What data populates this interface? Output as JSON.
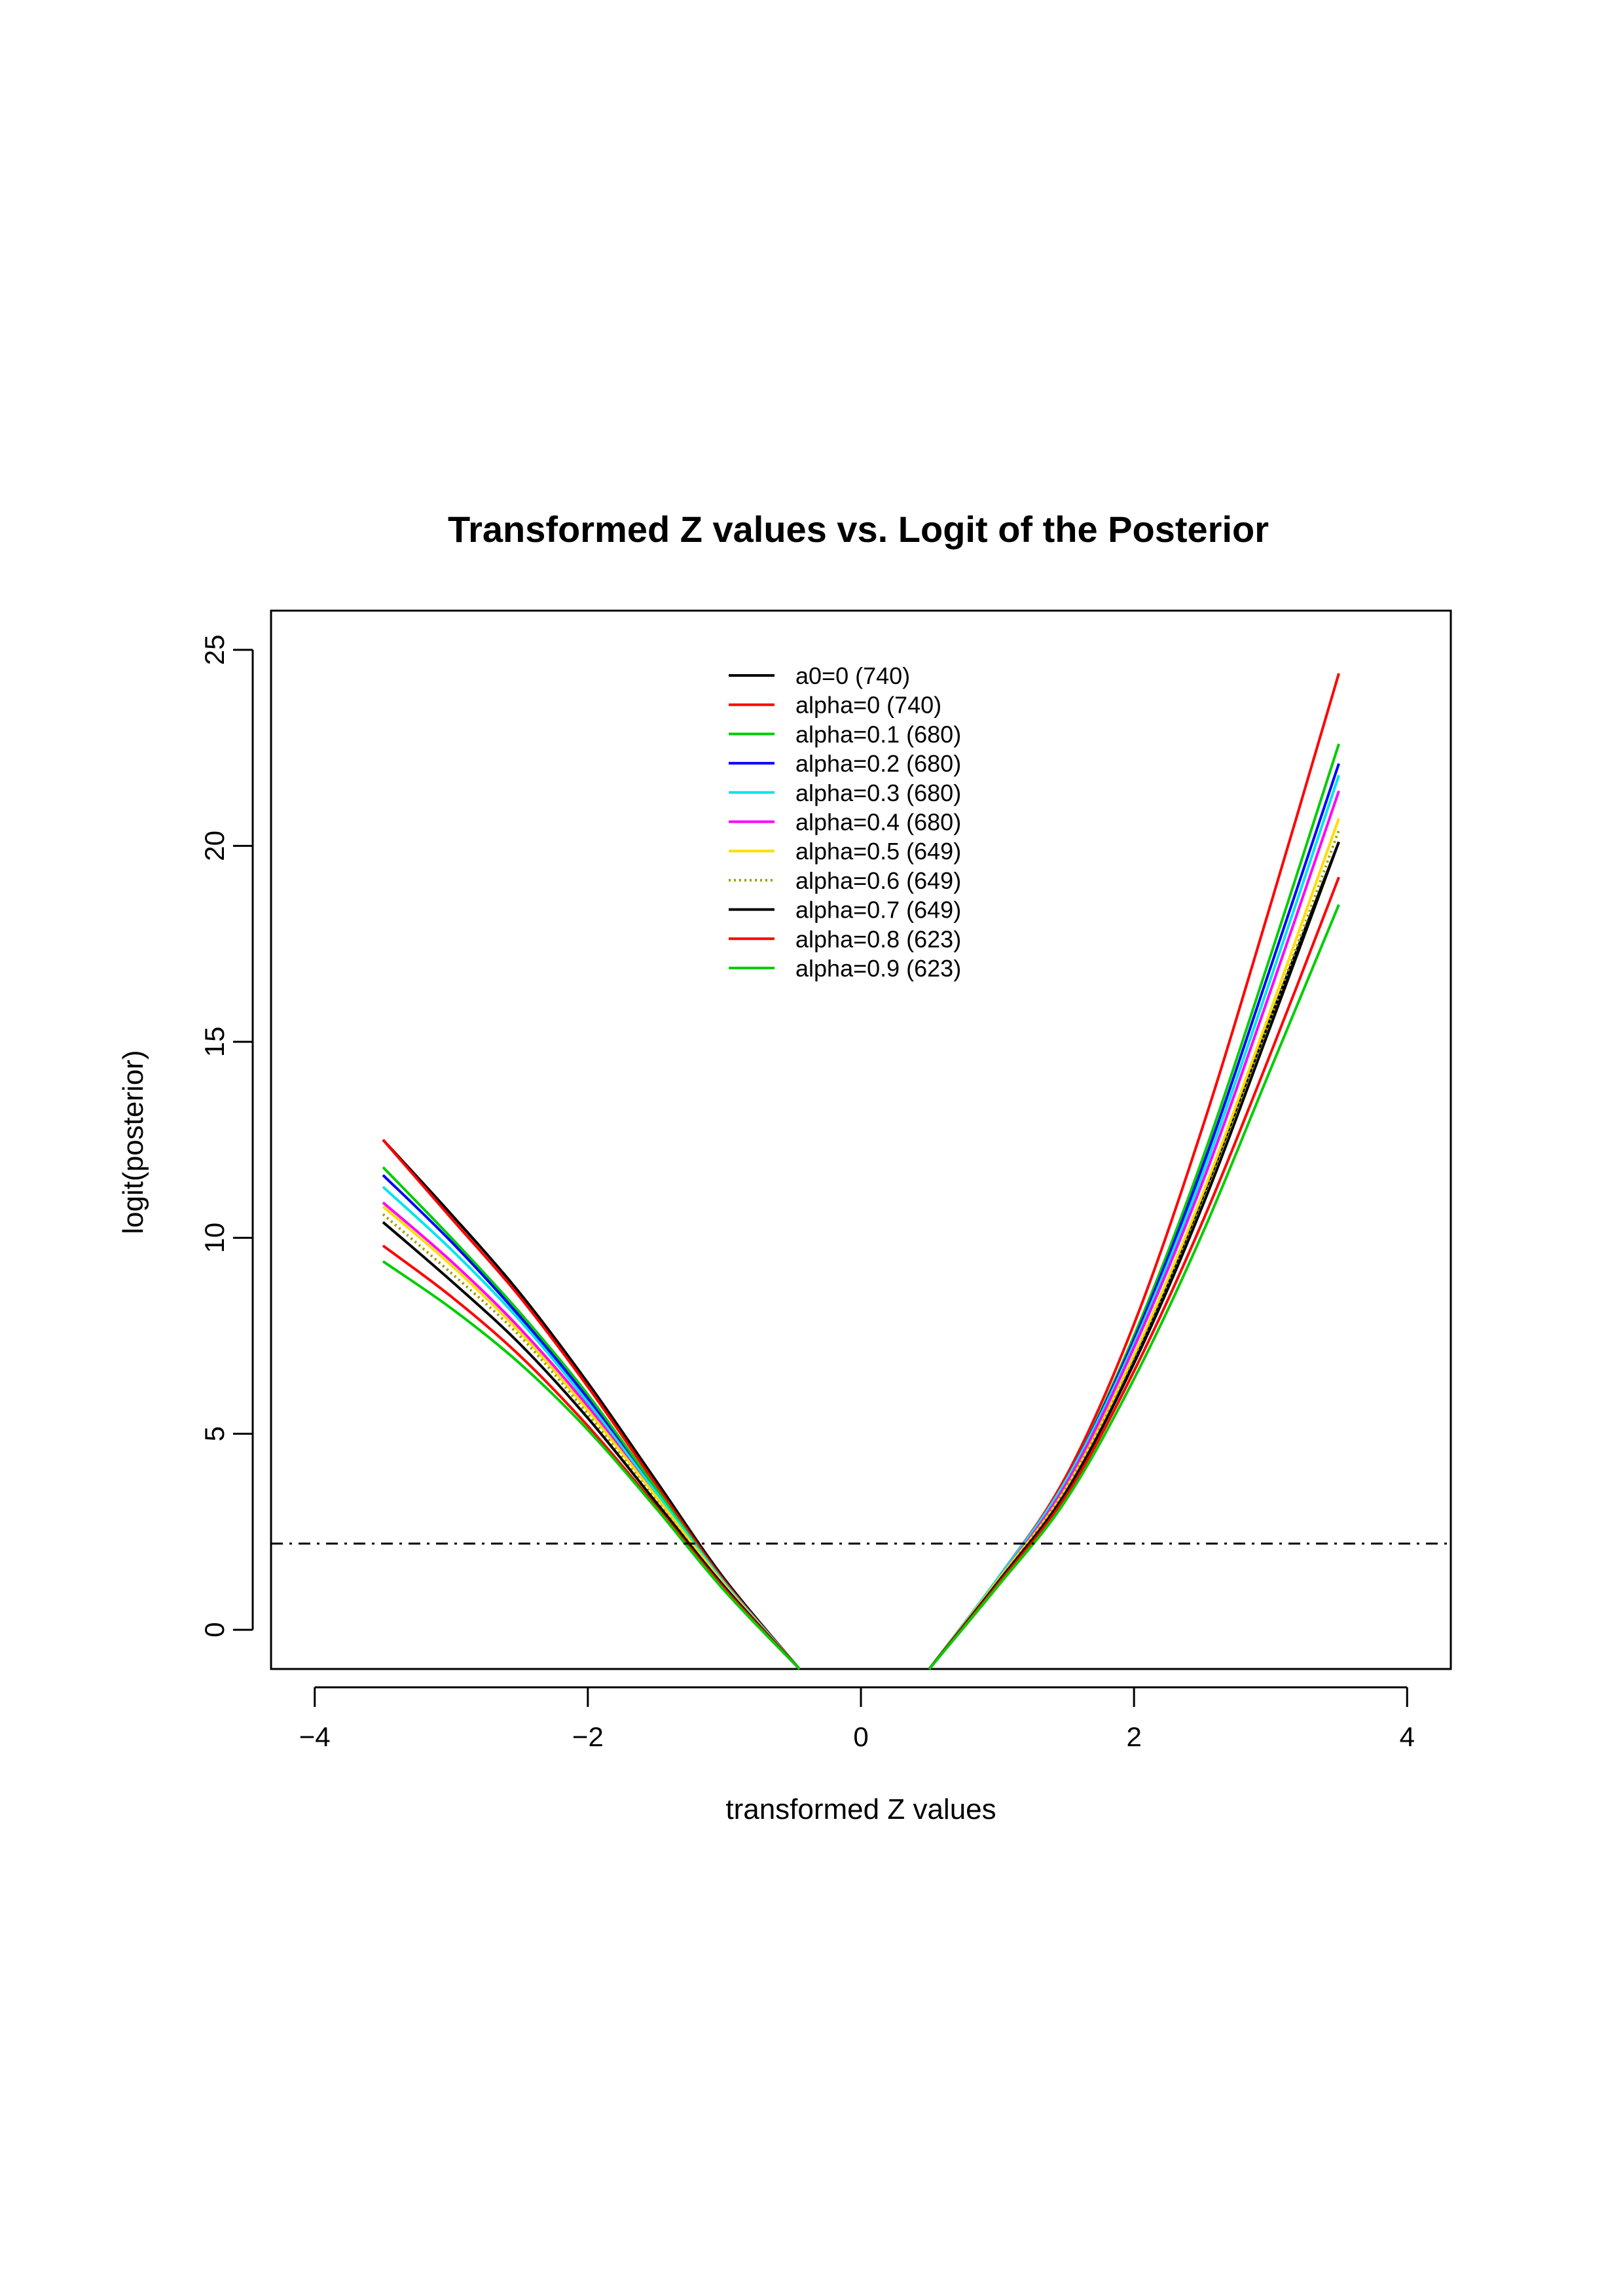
{
  "chart_data": {
    "type": "line",
    "title": "Transformed Z values vs. Logit of the Posterior",
    "xlabel": "transformed Z values",
    "ylabel": "logit(posterior)",
    "xlim": [
      -4.32,
      4.32
    ],
    "ylim": [
      -1,
      26
    ],
    "xticks": [
      -4,
      -2,
      0,
      2,
      4
    ],
    "xtick_labels": [
      "−4",
      "−2",
      "0",
      "2",
      "4"
    ],
    "yticks": [
      0,
      5,
      10,
      15,
      20,
      25
    ],
    "ytick_labels": [
      "0",
      "5",
      "10",
      "15",
      "20",
      "25"
    ],
    "legend_position": "top-center",
    "grid": false,
    "threshold_line": {
      "y": 2.2,
      "style": "dash-dot",
      "color": "#000000"
    },
    "series": [
      {
        "name": "a0=0 (740)",
        "color": "#000000",
        "dotted": false,
        "left_x": [
          -3.5,
          -3.0,
          -2.5,
          -2.0,
          -1.5,
          -1.0,
          -0.45
        ],
        "left_y": [
          12.5,
          10.6,
          8.6,
          6.3,
          3.8,
          1.3,
          -1
        ],
        "right_x": [
          0.5,
          1.0,
          1.5,
          2.0,
          2.5,
          3.0,
          3.5
        ],
        "right_y": [
          -1,
          1.2,
          3.5,
          6.9,
          11.0,
          15.6,
          20.1
        ]
      },
      {
        "name": "alpha=0 (740)",
        "color": "#ff0000",
        "dotted": false,
        "left_x": [
          -3.5,
          -3.0,
          -2.5,
          -2.0,
          -1.5,
          -1.0,
          -0.45
        ],
        "left_y": [
          12.5,
          10.5,
          8.5,
          6.2,
          3.7,
          1.25,
          -1
        ],
        "right_x": [
          0.5,
          1.0,
          1.5,
          2.0,
          2.5,
          3.0,
          3.5
        ],
        "right_y": [
          -1,
          1.3,
          3.9,
          7.8,
          12.8,
          18.5,
          24.4
        ]
      },
      {
        "name": "alpha=0.1 (680)",
        "color": "#00cd00",
        "dotted": false,
        "left_x": [
          -3.5,
          -3.0,
          -2.5,
          -2.0,
          -1.5,
          -1.0,
          -0.45
        ],
        "left_y": [
          11.8,
          10.0,
          8.1,
          6.0,
          3.6,
          1.2,
          -1
        ],
        "right_x": [
          0.5,
          1.0,
          1.5,
          2.0,
          2.5,
          3.0,
          3.5
        ],
        "right_y": [
          -1,
          1.3,
          3.8,
          7.5,
          12.0,
          17.2,
          22.6
        ]
      },
      {
        "name": "alpha=0.2 (680)",
        "color": "#0000ff",
        "dotted": false,
        "left_x": [
          -3.5,
          -3.0,
          -2.5,
          -2.0,
          -1.5,
          -1.0,
          -0.45
        ],
        "left_y": [
          11.6,
          9.9,
          8.0,
          5.9,
          3.5,
          1.2,
          -1
        ],
        "right_x": [
          0.5,
          1.0,
          1.5,
          2.0,
          2.5,
          3.0,
          3.5
        ],
        "right_y": [
          -1,
          1.3,
          3.8,
          7.4,
          11.8,
          16.9,
          22.1
        ]
      },
      {
        "name": "alpha=0.3 (680)",
        "color": "#00e5ee",
        "dotted": false,
        "left_x": [
          -3.5,
          -3.0,
          -2.5,
          -2.0,
          -1.5,
          -1.0,
          -0.45
        ],
        "left_y": [
          11.3,
          9.7,
          7.9,
          5.8,
          3.5,
          1.2,
          -1
        ],
        "right_x": [
          0.5,
          1.0,
          1.5,
          2.0,
          2.5,
          3.0,
          3.5
        ],
        "right_y": [
          -1,
          1.3,
          3.8,
          7.3,
          11.6,
          16.6,
          21.8
        ]
      },
      {
        "name": "alpha=0.4 (680)",
        "color": "#ff00ff",
        "dotted": false,
        "left_x": [
          -3.5,
          -3.0,
          -2.5,
          -2.0,
          -1.5,
          -1.0,
          -0.45
        ],
        "left_y": [
          10.9,
          9.4,
          7.7,
          5.7,
          3.4,
          1.15,
          -1
        ],
        "right_x": [
          0.5,
          1.0,
          1.5,
          2.0,
          2.5,
          3.0,
          3.5
        ],
        "right_y": [
          -1,
          1.25,
          3.7,
          7.2,
          11.4,
          16.3,
          21.4
        ]
      },
      {
        "name": "alpha=0.5 (649)",
        "color": "#ffdd00",
        "dotted": false,
        "left_x": [
          -3.5,
          -3.0,
          -2.5,
          -2.0,
          -1.5,
          -1.0,
          -0.45
        ],
        "left_y": [
          10.8,
          9.3,
          7.6,
          5.6,
          3.4,
          1.15,
          -1
        ],
        "right_x": [
          0.5,
          1.0,
          1.5,
          2.0,
          2.5,
          3.0,
          3.5
        ],
        "right_y": [
          -1,
          1.25,
          3.6,
          7.0,
          11.1,
          15.8,
          20.7
        ]
      },
      {
        "name": "alpha=0.6 (649)",
        "color": "#a0a000",
        "dotted": true,
        "left_x": [
          -3.5,
          -3.0,
          -2.5,
          -2.0,
          -1.5,
          -1.0,
          -0.45
        ],
        "left_y": [
          10.6,
          9.1,
          7.5,
          5.5,
          3.3,
          1.1,
          -1
        ],
        "right_x": [
          0.5,
          1.0,
          1.5,
          2.0,
          2.5,
          3.0,
          3.5
        ],
        "right_y": [
          -1,
          1.2,
          3.6,
          6.9,
          10.9,
          15.6,
          20.4
        ]
      },
      {
        "name": "alpha=0.7 (649)",
        "color": "#000000",
        "dotted": false,
        "left_x": [
          -3.5,
          -3.0,
          -2.5,
          -2.0,
          -1.5,
          -1.0,
          -0.45
        ],
        "left_y": [
          10.4,
          8.9,
          7.3,
          5.4,
          3.25,
          1.1,
          -1
        ],
        "right_x": [
          0.5,
          1.0,
          1.5,
          2.0,
          2.5,
          3.0,
          3.5
        ],
        "right_y": [
          -1,
          1.2,
          3.5,
          6.8,
          10.8,
          15.4,
          20.1
        ]
      },
      {
        "name": "alpha=0.8 (623)",
        "color": "#ff0000",
        "dotted": false,
        "left_x": [
          -3.5,
          -3.0,
          -2.5,
          -2.0,
          -1.5,
          -1.0,
          -0.45
        ],
        "left_y": [
          9.8,
          8.5,
          7.0,
          5.2,
          3.15,
          1.05,
          -1
        ],
        "right_x": [
          0.5,
          1.0,
          1.5,
          2.0,
          2.5,
          3.0,
          3.5
        ],
        "right_y": [
          -1,
          1.15,
          3.4,
          6.6,
          10.4,
          14.7,
          19.2
        ]
      },
      {
        "name": "alpha=0.9 (623)",
        "color": "#00cd00",
        "dotted": false,
        "left_x": [
          -3.5,
          -3.0,
          -2.5,
          -2.0,
          -1.5,
          -1.0,
          -0.45
        ],
        "left_y": [
          9.4,
          8.2,
          6.8,
          5.1,
          3.1,
          1.0,
          -1
        ],
        "right_x": [
          0.5,
          1.0,
          1.5,
          2.0,
          2.5,
          3.0,
          3.5
        ],
        "right_y": [
          -1,
          1.1,
          3.3,
          6.4,
          10.1,
          14.3,
          18.5
        ]
      }
    ]
  }
}
